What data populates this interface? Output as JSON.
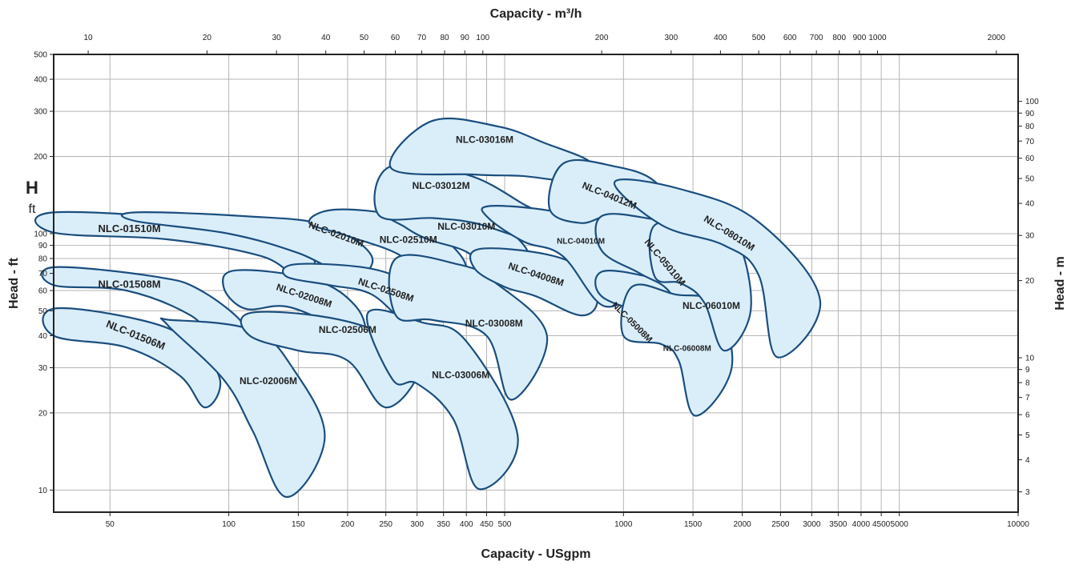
{
  "chart_data": {
    "type": "area",
    "title": "",
    "x_bottom_label": "Capacity - USgpm",
    "x_top_label": "Capacity - m³/h",
    "y_left_label": "Head - ft",
    "y_right_label": "Head - m",
    "y_left_symbol": "H",
    "y_left_symbol_unit": "ft",
    "x_bottom_scale": "log",
    "x_bottom_range": [
      36,
      10000
    ],
    "y_left_scale": "log",
    "y_left_range": [
      8.2,
      500
    ],
    "grid": true,
    "x_bottom_ticks": [
      "50",
      "100",
      "150",
      "200",
      "250",
      "300",
      "350",
      "400",
      "450",
      "500",
      "1000",
      "1500",
      "2000",
      "2500",
      "3000",
      "3500",
      "4000",
      "4500",
      "5000",
      "10000"
    ],
    "x_top_ticks": [
      "10",
      "20",
      "30",
      "40",
      "50",
      "60",
      "70",
      "80",
      "90",
      "100",
      "200",
      "300",
      "400",
      "500",
      "600",
      "700",
      "800",
      "900",
      "1000",
      "2000"
    ],
    "y_left_ticks": [
      "10",
      "20",
      "30",
      "40",
      "50",
      "60",
      "70",
      "80",
      "90",
      "100",
      "200",
      "300",
      "400",
      "500"
    ],
    "y_right_ticks": [
      "3",
      "4",
      "5",
      "6",
      "7",
      "8",
      "9",
      "10",
      "20",
      "30",
      "40",
      "50",
      "60",
      "70",
      "80",
      "90",
      "100"
    ],
    "fill_color": "#daeefa",
    "line_color": "#1b4e7e",
    "series": [
      {
        "name": "NLC-01506M",
        "points": [
          [
            36,
            51
          ],
          [
            60,
            46
          ],
          [
            80,
            38
          ],
          [
            95,
            27
          ],
          [
            87,
            21
          ],
          [
            75,
            28
          ],
          [
            55,
            36
          ],
          [
            36,
            40
          ]
        ]
      },
      {
        "name": "NLC-01508M",
        "points": [
          [
            36,
            74
          ],
          [
            65,
            68
          ],
          [
            85,
            60
          ],
          [
            110,
            43
          ],
          [
            95,
            37
          ],
          [
            80,
            48
          ],
          [
            55,
            60
          ],
          [
            36,
            63
          ]
        ]
      },
      {
        "name": "NLC-01510M",
        "points": [
          [
            36,
            121
          ],
          [
            90,
            112
          ],
          [
            140,
            97
          ],
          [
            165,
            78
          ],
          [
            148,
            69
          ],
          [
            120,
            82
          ],
          [
            70,
            95
          ],
          [
            36,
            101
          ]
        ]
      },
      {
        "name": "NLC-02006M",
        "points": [
          [
            72,
            46
          ],
          [
            115,
            42
          ],
          [
            145,
            30
          ],
          [
            175,
            16
          ],
          [
            140,
            9.4
          ],
          [
            115,
            17
          ],
          [
            97,
            27
          ],
          [
            70,
            44
          ]
        ]
      },
      {
        "name": "NLC-02008M",
        "points": [
          [
            105,
            72
          ],
          [
            165,
            66
          ],
          [
            210,
            52
          ],
          [
            220,
            40
          ],
          [
            185,
            44
          ],
          [
            140,
            52
          ],
          [
            110,
            51
          ],
          [
            97,
            62
          ]
        ]
      },
      {
        "name": "NLC-02010M",
        "points": [
          [
            58,
            121
          ],
          [
            110,
            117
          ],
          [
            175,
            108
          ],
          [
            230,
            82
          ],
          [
            205,
            68
          ],
          [
            150,
            84
          ],
          [
            100,
            100
          ],
          [
            58,
            112
          ]
        ]
      },
      {
        "name": "NLC-02506M",
        "points": [
          [
            113,
            49
          ],
          [
            180,
            47
          ],
          [
            260,
            39
          ],
          [
            305,
            30
          ],
          [
            250,
            21
          ],
          [
            200,
            32
          ],
          [
            150,
            35
          ],
          [
            113,
            40
          ]
        ]
      },
      {
        "name": "NLC-02508M",
        "points": [
          [
            148,
            76
          ],
          [
            230,
            73
          ],
          [
            290,
            62
          ],
          [
            310,
            49
          ],
          [
            285,
            44
          ],
          [
            230,
            58
          ],
          [
            180,
            63
          ],
          [
            140,
            68
          ]
        ]
      },
      {
        "name": "NLC-02510M",
        "points": [
          [
            185,
            124
          ],
          [
            270,
            117
          ],
          [
            350,
            96
          ],
          [
            400,
            71
          ],
          [
            330,
            57
          ],
          [
            280,
            80
          ],
          [
            200,
            98
          ],
          [
            160,
            110
          ]
        ]
      },
      {
        "name": "NLC-03006M",
        "points": [
          [
            225,
            49
          ],
          [
            310,
            45
          ],
          [
            400,
            38
          ],
          [
            540,
            16
          ],
          [
            430,
            10.1
          ],
          [
            370,
            19
          ],
          [
            300,
            26
          ],
          [
            260,
            27
          ]
        ]
      },
      {
        "name": "NLC-03008M",
        "points": [
          [
            265,
            80
          ],
          [
            380,
            76
          ],
          [
            470,
            65
          ],
          [
            640,
            40
          ],
          [
            520,
            22.5
          ],
          [
            450,
            40
          ],
          [
            330,
            46
          ],
          [
            265,
            48
          ]
        ]
      },
      {
        "name": "NLC-03010M",
        "points": [
          [
            255,
            120
          ],
          [
            400,
            119
          ],
          [
            480,
            111
          ],
          [
            575,
            82
          ],
          [
            470,
            70
          ],
          [
            400,
            85
          ],
          [
            320,
            95
          ],
          [
            280,
            106
          ]
        ]
      },
      {
        "name": "NLC-03012M",
        "points": [
          [
            255,
            182
          ],
          [
            400,
            170
          ],
          [
            560,
            130
          ],
          [
            640,
            114
          ],
          [
            580,
            96
          ],
          [
            420,
            110
          ],
          [
            330,
            115
          ],
          [
            240,
            118
          ]
        ]
      },
      {
        "name": "NLC-03016M",
        "points": [
          [
            325,
            274
          ],
          [
            480,
            262
          ],
          [
            630,
            226
          ],
          [
            830,
            188
          ],
          [
            740,
            162
          ],
          [
            550,
            168
          ],
          [
            420,
            170
          ],
          [
            258,
            180
          ]
        ]
      },
      {
        "name": "NLC-04008M",
        "points": [
          [
            430,
            87
          ],
          [
            640,
            83
          ],
          [
            800,
            71
          ],
          [
            860,
            55
          ],
          [
            780,
            48
          ],
          [
            600,
            57
          ],
          [
            500,
            62
          ],
          [
            420,
            73
          ]
        ]
      },
      {
        "name": "NLC-04010M",
        "points": [
          [
            455,
            128
          ],
          [
            650,
            123
          ],
          [
            920,
            108
          ],
          [
            1120,
            70
          ],
          [
            900,
            52
          ],
          [
            700,
            82
          ],
          [
            560,
            93
          ],
          [
            455,
            115
          ]
        ]
      },
      {
        "name": "NLC-04012M",
        "points": [
          [
            705,
            188
          ],
          [
            950,
            183
          ],
          [
            1200,
            160
          ],
          [
            1350,
            117
          ],
          [
            1200,
            100
          ],
          [
            950,
            118
          ],
          [
            780,
            110
          ],
          [
            650,
            125
          ]
        ]
      },
      {
        "name": "NLC-05008M",
        "points": [
          [
            880,
            71
          ],
          [
            1150,
            68
          ],
          [
            1450,
            60
          ],
          [
            1600,
            47
          ],
          [
            1500,
            32
          ],
          [
            1350,
            40
          ],
          [
            1150,
            48
          ],
          [
            880,
            57
          ]
        ]
      },
      {
        "name": "NLC-05010M",
        "points": [
          [
            880,
            117
          ],
          [
            1180,
            114
          ],
          [
            1500,
            103
          ],
          [
            1650,
            60
          ],
          [
            1450,
            44
          ],
          [
            1300,
            60
          ],
          [
            1100,
            70
          ],
          [
            880,
            86
          ]
        ]
      },
      {
        "name": "NLC-06008M",
        "points": [
          [
            1050,
            62
          ],
          [
            1350,
            58
          ],
          [
            1700,
            53
          ],
          [
            1880,
            30
          ],
          [
            1520,
            19.5
          ],
          [
            1380,
            32
          ],
          [
            1250,
            37
          ],
          [
            1000,
            40
          ]
        ]
      },
      {
        "name": "NLC-06010M",
        "points": [
          [
            1200,
            108
          ],
          [
            1600,
            103
          ],
          [
            1950,
            92
          ],
          [
            2100,
            50
          ],
          [
            1800,
            35
          ],
          [
            1600,
            54
          ],
          [
            1400,
            64
          ],
          [
            1200,
            68
          ]
        ]
      },
      {
        "name": "NLC-08010M",
        "points": [
          [
            950,
            159
          ],
          [
            1400,
            149
          ],
          [
            2200,
            111
          ],
          [
            3150,
            55
          ],
          [
            2450,
            33
          ],
          [
            2200,
            69
          ],
          [
            1800,
            90
          ],
          [
            1250,
            108
          ]
        ]
      }
    ],
    "labels": [
      {
        "text": "NLC-01506M",
        "at": [
          58,
          40
        ],
        "angle": 22,
        "size": 13
      },
      {
        "text": "NLC-01508M",
        "at": [
          56,
          63
        ],
        "angle": 0,
        "size": 13
      },
      {
        "text": "NLC-01510M",
        "at": [
          56,
          104
        ],
        "angle": 0,
        "size": 13
      },
      {
        "text": "NLC-02006M",
        "at": [
          126,
          26.5
        ],
        "angle": 0,
        "size": 12
      },
      {
        "text": "NLC-02008M",
        "at": [
          155,
          57
        ],
        "angle": 18,
        "size": 12
      },
      {
        "text": "NLC-02010M",
        "at": [
          187,
          99
        ],
        "angle": 20,
        "size": 12
      },
      {
        "text": "NLC-02506M",
        "at": [
          200,
          42
        ],
        "angle": 0,
        "size": 12
      },
      {
        "text": "NLC-02508M",
        "at": [
          250,
          60
        ],
        "angle": 18,
        "size": 12
      },
      {
        "text": "NLC-02510M",
        "at": [
          285,
          94
        ],
        "angle": 0,
        "size": 12
      },
      {
        "text": "NLC-03006M",
        "at": [
          387,
          28
        ],
        "angle": 0,
        "size": 12
      },
      {
        "text": "NLC-03008M",
        "at": [
          470,
          44.5
        ],
        "angle": 0,
        "size": 12
      },
      {
        "text": "NLC-03010M",
        "at": [
          400,
          106
        ],
        "angle": 0,
        "size": 12
      },
      {
        "text": "NLC-03012M",
        "at": [
          345,
          153
        ],
        "angle": 0,
        "size": 12
      },
      {
        "text": "NLC-03016M",
        "at": [
          445,
          231
        ],
        "angle": 0,
        "size": 12
      },
      {
        "text": "NLC-04008M",
        "at": [
          600,
          69
        ],
        "angle": 18,
        "size": 12
      },
      {
        "text": "NLC-04010M",
        "at": [
          780,
          93
        ],
        "angle": 0,
        "size": 10
      },
      {
        "text": "NLC-04012M",
        "at": [
          920,
          140
        ],
        "angle": 22,
        "size": 12
      },
      {
        "text": "NLC-05008M",
        "at": [
          1050,
          45
        ],
        "angle": 45,
        "size": 11
      },
      {
        "text": "NLC-05010M",
        "at": [
          1270,
          77
        ],
        "angle": 50,
        "size": 12
      },
      {
        "text": "NLC-06008M",
        "at": [
          1450,
          35.5
        ],
        "angle": 0,
        "size": 10
      },
      {
        "text": "NLC-06010M",
        "at": [
          1670,
          52
        ],
        "angle": 0,
        "size": 12
      },
      {
        "text": "NLC-08010M",
        "at": [
          1850,
          100
        ],
        "angle": 32,
        "size": 12
      }
    ]
  }
}
